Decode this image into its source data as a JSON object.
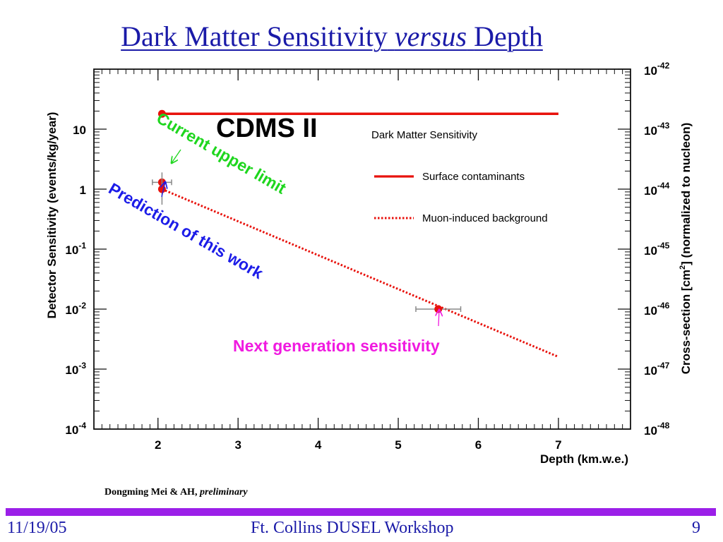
{
  "slide": {
    "title_part1": "Dark Matter Sensitivity",
    "title_italic": "versus",
    "title_part2": "Depth",
    "credit_authors": "Dongming Mei & AH,",
    "credit_status": "preliminary",
    "footer_date": "11/19/05",
    "footer_event": "Ft. Collins DUSEL Workshop",
    "footer_page": "9",
    "title_color": "#1a1aa8",
    "footer_bar_color": "#9b1fe8"
  },
  "chart_data": {
    "type": "line",
    "title": "CDMS II",
    "legend_title": "Dark Matter Sensitivity",
    "legend_position": "top-right",
    "xlabel": "Depth (km.w.e.)",
    "ylabel": "Detector Sensitivity (events/kg/year)",
    "y2label_before": "Cross-section [cm",
    "y2label_sup": "2",
    "y2label_after": "] (normalized to nucleon)",
    "xlim": [
      1.2,
      7.9
    ],
    "ylim": [
      0.0001,
      100
    ],
    "yscale": "log",
    "xticks": [
      "2",
      "3",
      "4",
      "5",
      "6",
      "7"
    ],
    "yticks": [
      {
        "base": "10",
        "exp": "",
        "value": 10
      },
      {
        "base": "1",
        "exp": "",
        "value": 1
      },
      {
        "base": "10",
        "exp": "-1",
        "value": 0.1
      },
      {
        "base": "10",
        "exp": "-2",
        "value": 0.01
      },
      {
        "base": "10",
        "exp": "-3",
        "value": 0.001
      },
      {
        "base": "10",
        "exp": "-4",
        "value": 0.0001
      }
    ],
    "y2ticks": [
      {
        "base": "10",
        "exp": "-42",
        "value": 100
      },
      {
        "base": "10",
        "exp": "-43",
        "value": 10
      },
      {
        "base": "10",
        "exp": "-44",
        "value": 1
      },
      {
        "base": "10",
        "exp": "-45",
        "value": 0.1
      },
      {
        "base": "10",
        "exp": "-46",
        "value": 0.01
      },
      {
        "base": "10",
        "exp": "-47",
        "value": 0.001
      },
      {
        "base": "10",
        "exp": "-48",
        "value": 0.0001
      }
    ],
    "series": [
      {
        "name": "Surface contaminants",
        "style": "solid",
        "color": "#e8120c",
        "x": [
          2.05,
          7.0
        ],
        "y": [
          18,
          18
        ]
      },
      {
        "name": "Muon-induced background",
        "style": "dotted",
        "color": "#e8120c",
        "x": [
          2.05,
          7.0
        ],
        "y": [
          1.0,
          0.0016
        ]
      }
    ],
    "points": [
      {
        "x": 2.05,
        "y": 18,
        "xerr": 0,
        "yerr": [
          18,
          18
        ]
      },
      {
        "x": 2.05,
        "y": 1.3,
        "xerr": 0.12,
        "yerr": [
          0.9,
          1.9
        ]
      },
      {
        "x": 2.05,
        "y": 1.0,
        "xerr": 0,
        "yerr": [
          0.55,
          1.5
        ]
      },
      {
        "x": 5.5,
        "y": 0.01,
        "xerr": 0.28,
        "yerr": [
          0.01,
          0.01
        ]
      }
    ],
    "annotations": [
      {
        "text": "Current upper limit",
        "color": "#1ed61e",
        "arrow_to": [
          2.08,
          1.55
        ]
      },
      {
        "text": "Prediction of this work",
        "color": "#1c1ce8",
        "arrow_to": [
          2.03,
          1.0
        ]
      },
      {
        "text": "Next generation sensitivity",
        "color": "#f01ae0",
        "arrow_to": [
          5.5,
          0.011
        ]
      }
    ]
  }
}
